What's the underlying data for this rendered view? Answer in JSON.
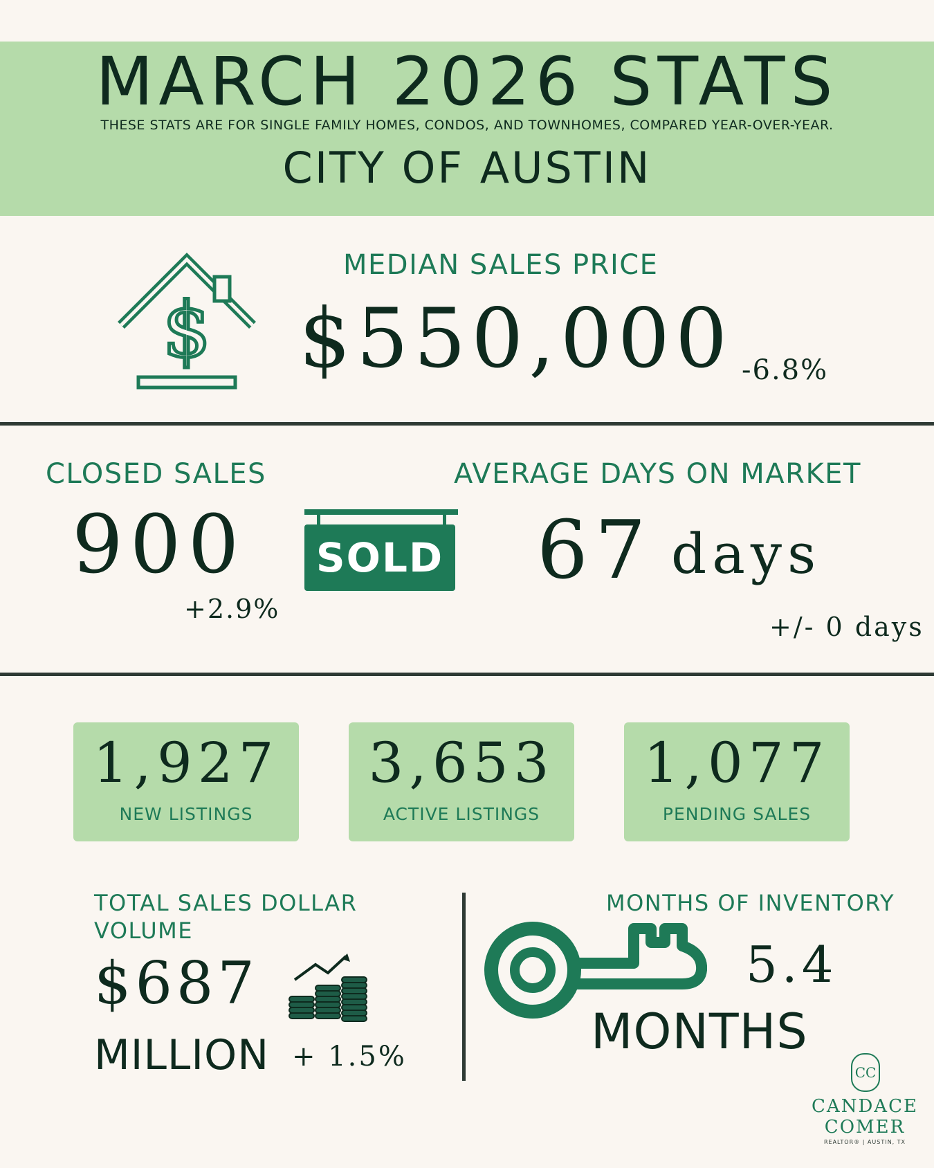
{
  "header": {
    "title": "MARCH 2026 STATS",
    "subtitle": "THESE STATS ARE FOR SINGLE FAMILY HOMES, CONDOS, AND TOWNHOMES, COMPARED YEAR-OVER-YEAR.",
    "city": "CITY OF AUSTIN",
    "background_color": "#b5dbaa"
  },
  "median_sales_price": {
    "label": "MEDIAN SALES PRICE",
    "value": "$550,000",
    "change": "-6.8%",
    "icon": "house-dollar-icon"
  },
  "closed_sales": {
    "label": "CLOSED SALES",
    "value": "900",
    "change": "+2.9%",
    "sign_text": "SOLD",
    "icon": "sold-sign-icon"
  },
  "days_on_market": {
    "label": "AVERAGE DAYS ON MARKET",
    "value": "67",
    "unit": "days",
    "change": "+/- 0 days"
  },
  "cards": [
    {
      "value": "1,927",
      "label": "NEW LISTINGS"
    },
    {
      "value": "3,653",
      "label": "ACTIVE LISTINGS"
    },
    {
      "value": "1,077",
      "label": "PENDING SALES"
    }
  ],
  "total_volume": {
    "label_line1": "TOTAL SALES DOLLAR",
    "label_line2": "VOLUME",
    "value": "$687",
    "unit": "MILLION",
    "change": "+ 1.5%",
    "icon": "coins-growth-icon"
  },
  "months_inventory": {
    "label": "MONTHS OF INVENTORY",
    "value": "5.4",
    "unit": "MONTHS",
    "icon": "key-icon"
  },
  "brand": {
    "monogram": "CC",
    "name_line1": "CANDACE",
    "name_line2": "COMER",
    "tagline": "REALTOR® | AUSTIN, TX"
  },
  "colors": {
    "accent_green": "#1e7a57",
    "light_green": "#b5dbaa",
    "dark_text": "#0e2a1e",
    "background": "#faf6f1"
  }
}
